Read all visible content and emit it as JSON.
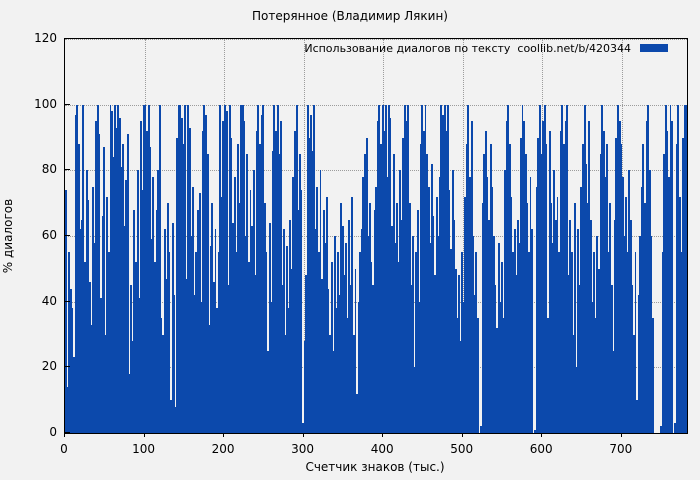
{
  "window": {
    "background": "#f2f2f2",
    "axis_color": "#000000",
    "grid_color": "#9c9c9c"
  },
  "chart_data": {
    "type": "bar",
    "title": "Потерянное (Владимир Лякин)",
    "xlabel": "Счетчик знаков (тыс.)",
    "ylabel": "% диалогов",
    "legend": {
      "label": "Использование диалогов по тексту  coollib.net/b/420344",
      "position": "top-right",
      "swatch_color": "#0c49ac"
    },
    "bar_color": "#0c49ac",
    "grid": true,
    "xlim": [
      0,
      782
    ],
    "ylim": [
      0,
      120
    ],
    "xticks": [
      0,
      100,
      200,
      300,
      400,
      500,
      600,
      700
    ],
    "yticks": [
      0,
      20,
      40,
      60,
      80,
      100,
      120
    ],
    "x_start": 0,
    "x_step": 2,
    "values": [
      74,
      14,
      55,
      44,
      38,
      23,
      97,
      100,
      88,
      62,
      65,
      100,
      52,
      80,
      71,
      46,
      33,
      75,
      58,
      95,
      100,
      91,
      41,
      66,
      87,
      30,
      72,
      55,
      100,
      98,
      84,
      100,
      93,
      100,
      96,
      81,
      88,
      63,
      77,
      91,
      18,
      45,
      28,
      68,
      52,
      80,
      41,
      95,
      74,
      100,
      100,
      92,
      100,
      87,
      59,
      78,
      52,
      68,
      80,
      100,
      35,
      30,
      62,
      47,
      70,
      55,
      10,
      64,
      42,
      8,
      90,
      100,
      100,
      96,
      88,
      100,
      47,
      100,
      93,
      60,
      75,
      42,
      55,
      68,
      73,
      40,
      92,
      100,
      97,
      85,
      33,
      57,
      70,
      46,
      62,
      38,
      55,
      100,
      72,
      95,
      100,
      98,
      45,
      100,
      90,
      64,
      78,
      55,
      88,
      70,
      100,
      100,
      95,
      60,
      85,
      52,
      74,
      63,
      80,
      48,
      92,
      100,
      88,
      97,
      100,
      70,
      55,
      25,
      64,
      40,
      86,
      100,
      92,
      100,
      85,
      95,
      45,
      62,
      30,
      57,
      38,
      65,
      50,
      78,
      92,
      100,
      68,
      85,
      74,
      3,
      28,
      48,
      100,
      90,
      97,
      86,
      100,
      62,
      75,
      55,
      80,
      47,
      68,
      58,
      72,
      44,
      30,
      52,
      25,
      60,
      38,
      55,
      42,
      70,
      63,
      48,
      58,
      35,
      65,
      45,
      72,
      30,
      50,
      12,
      40,
      55,
      62,
      78,
      85,
      90,
      60,
      70,
      52,
      45,
      68,
      75,
      95,
      100,
      88,
      100,
      92,
      100,
      78,
      100,
      96,
      63,
      85,
      58,
      70,
      52,
      80,
      65,
      90,
      100,
      95,
      100,
      70,
      45,
      60,
      20,
      55,
      68,
      40,
      88,
      100,
      92,
      100,
      85,
      75,
      58,
      82,
      66,
      48,
      72,
      60,
      78,
      100,
      97,
      100,
      92,
      100,
      74,
      56,
      80,
      65,
      50,
      35,
      48,
      28,
      55,
      40,
      72,
      88,
      100,
      78,
      95,
      60,
      42,
      55,
      35,
      0,
      2,
      70,
      85,
      92,
      78,
      65,
      88,
      75,
      60,
      45,
      32,
      58,
      40,
      52,
      35,
      80,
      95,
      100,
      88,
      72,
      55,
      62,
      48,
      65,
      58,
      90,
      100,
      95,
      85,
      70,
      55,
      78,
      62,
      0,
      1,
      75,
      90,
      100,
      85,
      95,
      100,
      88,
      35,
      92,
      70,
      58,
      80,
      65,
      72,
      55,
      92,
      100,
      88,
      95,
      100,
      48,
      65,
      55,
      30,
      70,
      20,
      62,
      45,
      75,
      88,
      100,
      82,
      70,
      95,
      65,
      40,
      55,
      35,
      60,
      50,
      85,
      100,
      92,
      78,
      88,
      55,
      70,
      45,
      25,
      65,
      90,
      100,
      95,
      88,
      78,
      60,
      72,
      55,
      80,
      65,
      45,
      30,
      55,
      10,
      42,
      60,
      75,
      88,
      70,
      95,
      100,
      80,
      60,
      35,
      0,
      0,
      0,
      0,
      2,
      55,
      85,
      100,
      92,
      78,
      100,
      95,
      0,
      3,
      88,
      100,
      72,
      55,
      90,
      100,
      100
    ]
  }
}
